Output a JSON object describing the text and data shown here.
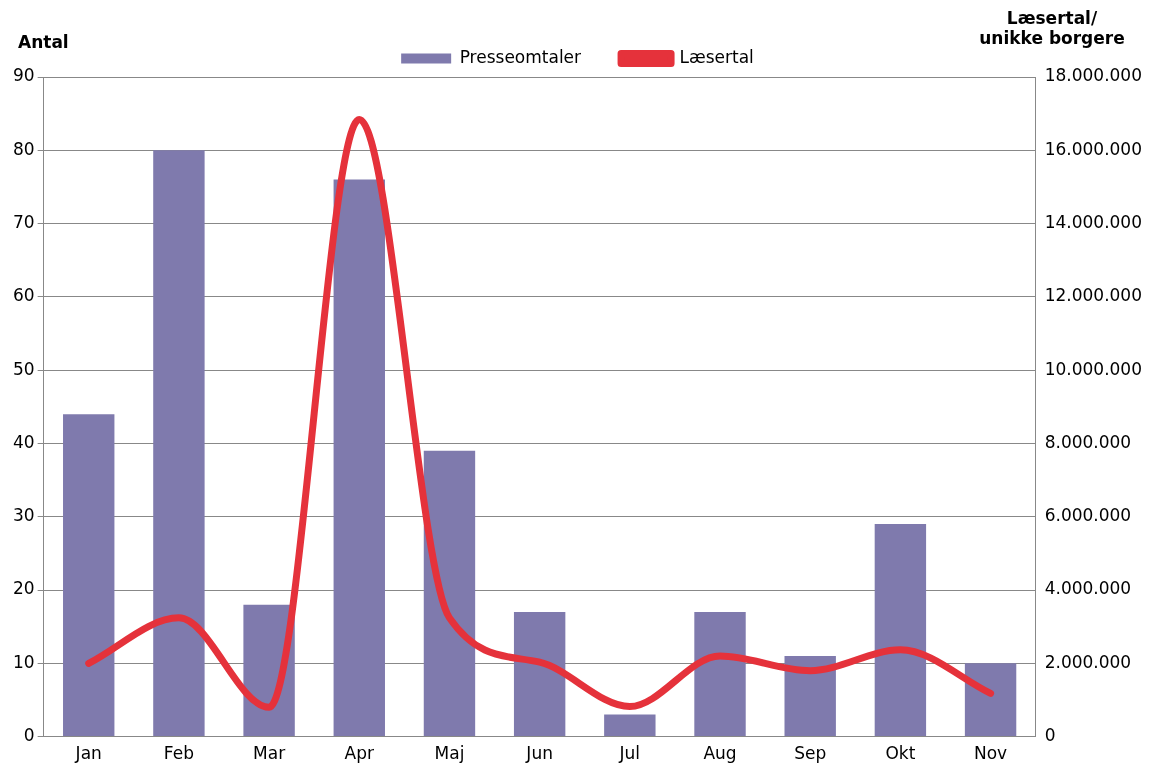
{
  "chart_data": {
    "type": "bar",
    "ylabel": "Antal",
    "y2label": "Læsertal/ unikke borgere",
    "categories": [
      "Jan",
      "Feb",
      "Mar",
      "Apr",
      "Maj",
      "Jun",
      "Jul",
      "Aug",
      "Sep",
      "Okt",
      "Nov"
    ],
    "series": [
      {
        "name": "Presseomtaler",
        "color": "#7f7aad",
        "values": [
          44,
          80,
          18,
          76,
          39,
          17,
          3,
          17,
          11,
          29,
          10
        ]
      },
      {
        "name": "Læsertal",
        "type": "line",
        "axis": "y2",
        "color": "#e5323b",
        "values": [
          2000000,
          3240000,
          800000,
          16840000,
          3240000,
          2030000,
          820000,
          2200000,
          1800000,
          2370000,
          1180000
        ]
      }
    ],
    "ylim": [
      0,
      90
    ],
    "yticks": [
      0,
      10,
      20,
      30,
      40,
      50,
      60,
      70,
      80,
      90
    ],
    "y2lim": [
      0,
      18000000
    ],
    "y2ticks": [
      0,
      {
        "value": 2000000,
        "label": "2.000.000"
      },
      {
        "value": 4000000,
        "label": "4.000.000"
      },
      {
        "value": 6000000,
        "label": "6.000.000"
      },
      {
        "value": 8000000,
        "label": "8.000.000"
      },
      {
        "value": 10000000,
        "label": "10.000.000"
      },
      {
        "value": 12000000,
        "label": "12.000.000"
      },
      {
        "value": 14000000,
        "label": "14.000.000"
      },
      {
        "value": 16000000,
        "label": "16.000.000"
      },
      {
        "value": 18000000,
        "label": "18.000.000"
      }
    ],
    "grid": "y",
    "legend": "top",
    "marker": "none",
    "line_style": "solid"
  }
}
